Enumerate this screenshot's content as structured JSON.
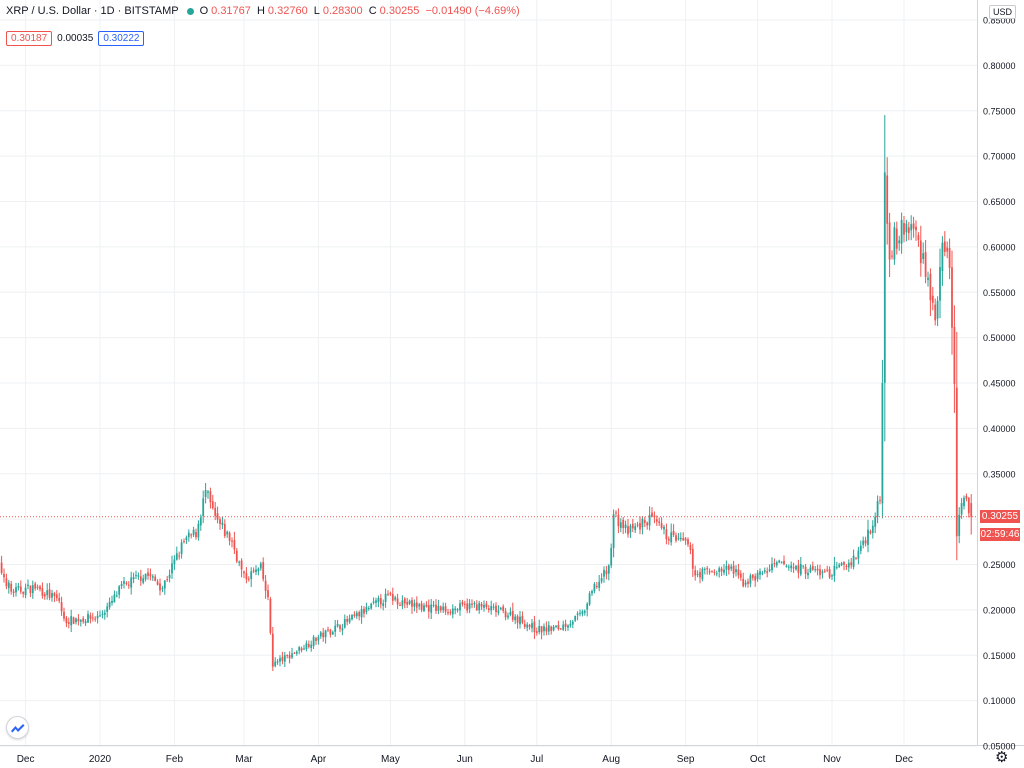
{
  "header": {
    "symbol": "XRP / U.S. Dollar · 1D · BITSTAMP",
    "open_label": "O",
    "open": "0.31767",
    "high_label": "H",
    "high": "0.32760",
    "low_label": "L",
    "low": "0.28300",
    "close_label": "C",
    "close": "0.30255",
    "change": "−0.01490 (−4.69%)"
  },
  "quote": {
    "bid": "0.30187",
    "spread": "0.00035",
    "ask": "0.30222"
  },
  "axis": {
    "currency": "USD"
  },
  "last_price": {
    "value": "0.30255",
    "countdown": "02:59:46"
  },
  "colors": {
    "up": "#26a69a",
    "down": "#ef5350",
    "grid": "#eef0f3",
    "axis_text": "#131722",
    "price_line": "#ef5350"
  },
  "icons": {
    "settings": "gear-icon",
    "logo": "tradingview-logo-icon",
    "status": "live-dot-icon"
  },
  "chart_data": {
    "type": "candlestick",
    "title": "XRP / U.S. Dollar · 1D · BITSTAMP",
    "ylim": [
      0.05,
      0.85
    ],
    "y_ticks": [
      "0.85000",
      "0.80000",
      "0.75000",
      "0.70000",
      "0.65000",
      "0.60000",
      "0.55000",
      "0.50000",
      "0.45000",
      "0.40000",
      "0.35000",
      "0.30000",
      "0.25000",
      "0.20000",
      "0.15000",
      "0.10000",
      "0.05000"
    ],
    "x_ticks": [
      "Dec",
      "2020",
      "Feb",
      "Mar",
      "Apr",
      "May",
      "Jun",
      "Jul",
      "Aug",
      "Sep",
      "Oct",
      "Nov",
      "Dec"
    ],
    "grid": true,
    "series": {
      "x_start": "2019-11-16",
      "x_end": "2020-12-29",
      "close_anchors": [
        [
          "2019-11-16",
          0.27
        ],
        [
          "2019-11-25",
          0.22
        ],
        [
          "2019-12-05",
          0.225
        ],
        [
          "2019-12-15",
          0.21
        ],
        [
          "2019-12-17",
          0.188
        ],
        [
          "2019-12-31",
          0.192
        ],
        [
          "2020-01-05",
          0.205
        ],
        [
          "2020-01-10",
          0.225
        ],
        [
          "2020-01-20",
          0.24
        ],
        [
          "2020-01-27",
          0.225
        ],
        [
          "2020-02-05",
          0.275
        ],
        [
          "2020-02-10",
          0.285
        ],
        [
          "2020-02-14",
          0.33
        ],
        [
          "2020-02-18",
          0.3
        ],
        [
          "2020-02-25",
          0.275
        ],
        [
          "2020-03-01",
          0.235
        ],
        [
          "2020-03-08",
          0.245
        ],
        [
          "2020-03-11",
          0.21
        ],
        [
          "2020-03-13",
          0.14
        ],
        [
          "2020-03-20",
          0.15
        ],
        [
          "2020-04-01",
          0.17
        ],
        [
          "2020-04-15",
          0.19
        ],
        [
          "2020-04-30",
          0.215
        ],
        [
          "2020-05-10",
          0.205
        ],
        [
          "2020-05-25",
          0.2
        ],
        [
          "2020-06-05",
          0.205
        ],
        [
          "2020-06-20",
          0.195
        ],
        [
          "2020-07-01",
          0.178
        ],
        [
          "2020-07-10",
          0.18
        ],
        [
          "2020-07-20",
          0.195
        ],
        [
          "2020-07-25",
          0.225
        ],
        [
          "2020-07-31",
          0.245
        ],
        [
          "2020-08-02",
          0.305
        ],
        [
          "2020-08-08",
          0.285
        ],
        [
          "2020-08-17",
          0.3
        ],
        [
          "2020-08-23",
          0.285
        ],
        [
          "2020-09-02",
          0.27
        ],
        [
          "2020-09-05",
          0.24
        ],
        [
          "2020-09-20",
          0.245
        ],
        [
          "2020-09-25",
          0.23
        ],
        [
          "2020-10-10",
          0.25
        ],
        [
          "2020-10-20",
          0.245
        ],
        [
          "2020-10-31",
          0.24
        ],
        [
          "2020-11-10",
          0.255
        ],
        [
          "2020-11-17",
          0.29
        ],
        [
          "2020-11-21",
          0.32
        ],
        [
          "2020-11-22",
          0.46
        ],
        [
          "2020-11-23",
          0.68
        ],
        [
          "2020-11-25",
          0.6
        ],
        [
          "2020-11-28",
          0.61
        ],
        [
          "2020-12-01",
          0.62
        ],
        [
          "2020-12-05",
          0.62
        ],
        [
          "2020-12-10",
          0.58
        ],
        [
          "2020-12-14",
          0.52
        ],
        [
          "2020-12-17",
          0.59
        ],
        [
          "2020-12-20",
          0.58
        ],
        [
          "2020-12-21",
          0.52
        ],
        [
          "2020-12-22",
          0.44
        ],
        [
          "2020-12-23",
          0.28
        ],
        [
          "2020-12-24",
          0.31
        ],
        [
          "2020-12-27",
          0.32
        ],
        [
          "2020-12-29",
          0.303
        ]
      ],
      "last_candle": {
        "open": 0.31767,
        "high": 0.3276,
        "low": 0.283,
        "close": 0.30255
      }
    }
  }
}
